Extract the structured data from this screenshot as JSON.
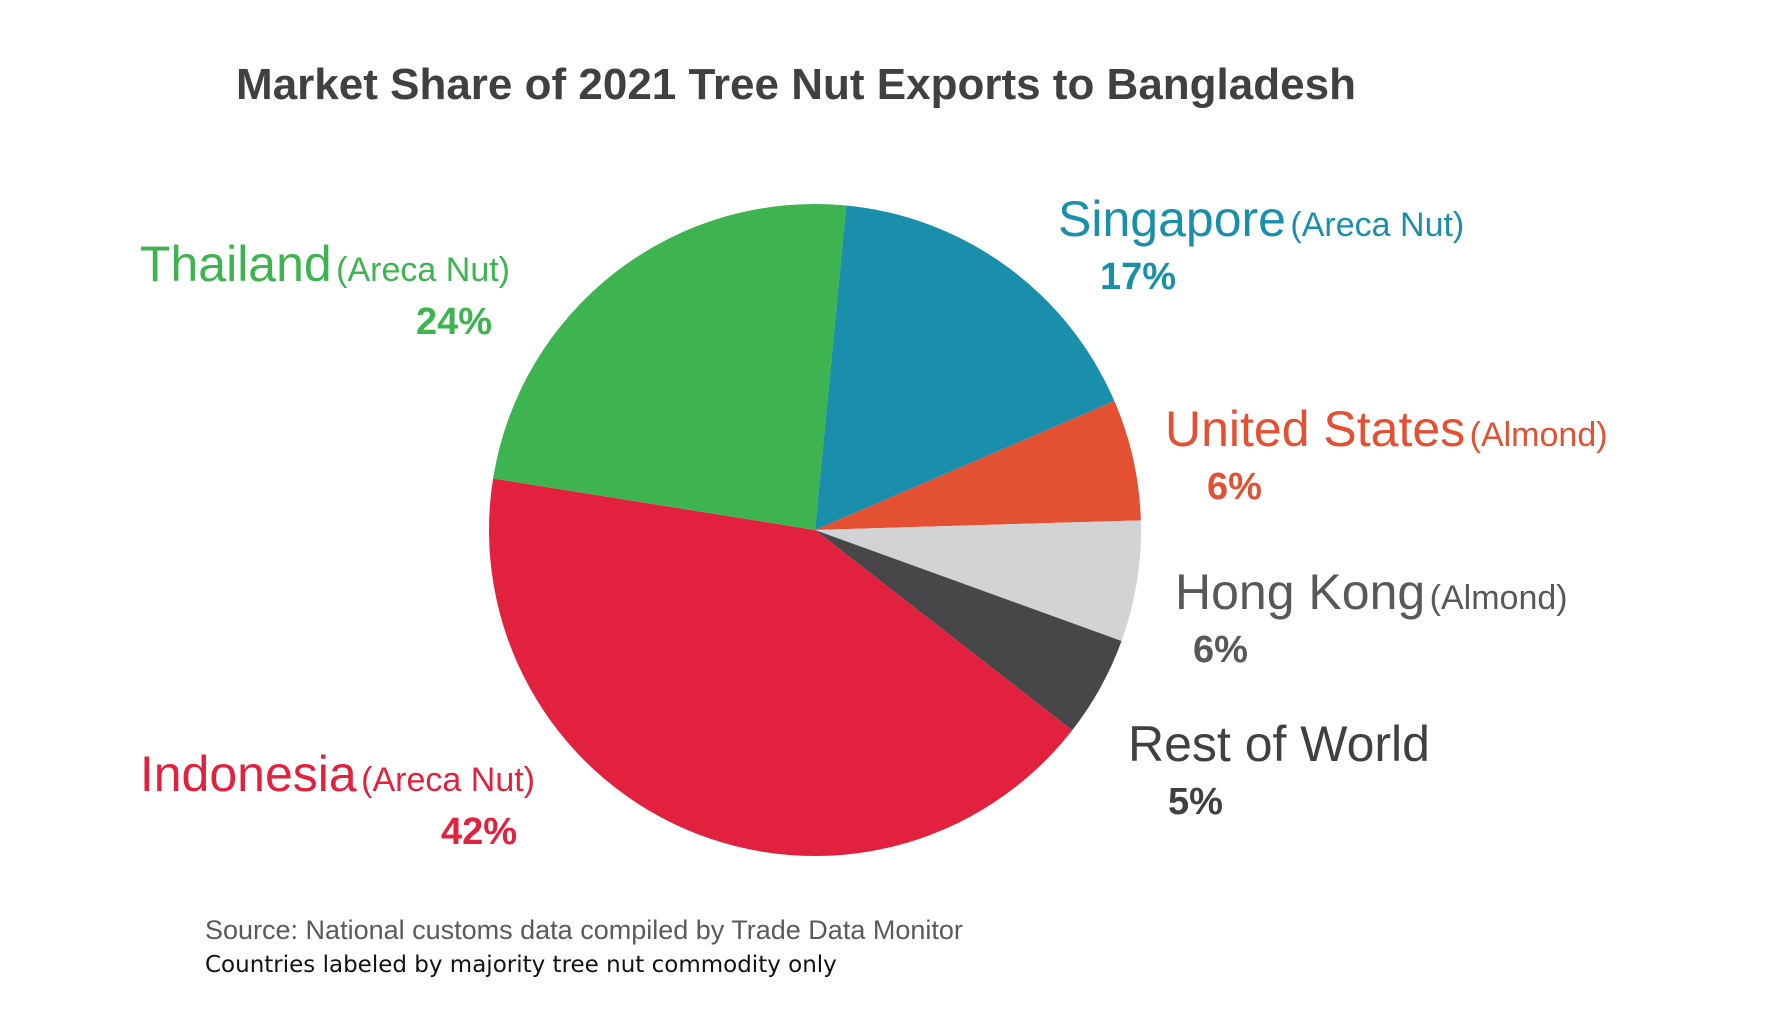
{
  "chart_data": {
    "type": "pie",
    "title": "Market Share of 2021 Tree Nut Exports to Bangladesh",
    "slices": [
      {
        "country": "Singapore",
        "commodity": "(Areca Nut)",
        "value": 17,
        "value_label": "17%",
        "color": "#1a8fac"
      },
      {
        "country": "United States",
        "commodity": "(Almond)",
        "value": 6,
        "value_label": "6%",
        "color": "#e35032"
      },
      {
        "country": "Hong Kong",
        "commodity": "(Almond)",
        "value": 6,
        "value_label": "6%",
        "color": "#d1d3d4"
      },
      {
        "country": "Rest of World",
        "commodity": "",
        "value": 5,
        "value_label": "5%",
        "color": "#47474a"
      },
      {
        "country": "Indonesia",
        "commodity": "(Areca Nut)",
        "value": 42,
        "value_label": "42%",
        "color": "#e2213f"
      },
      {
        "country": "Thailand",
        "commodity": "(Areca Nut)",
        "value": 24,
        "value_label": "24%",
        "color": "#3db44f"
      }
    ],
    "label_colors": {
      "Singapore": "#1a8fac",
      "United States": "#e35032",
      "Hong Kong": "#58585a",
      "Rest of World": "#404040",
      "Indonesia": "#e2213f",
      "Thailand": "#3db44f"
    }
  },
  "notes": {
    "source": "Source: National customs data compiled by Trade Data Monitor",
    "commodity_note": "Countries labeled by majority tree nut commodity only"
  }
}
